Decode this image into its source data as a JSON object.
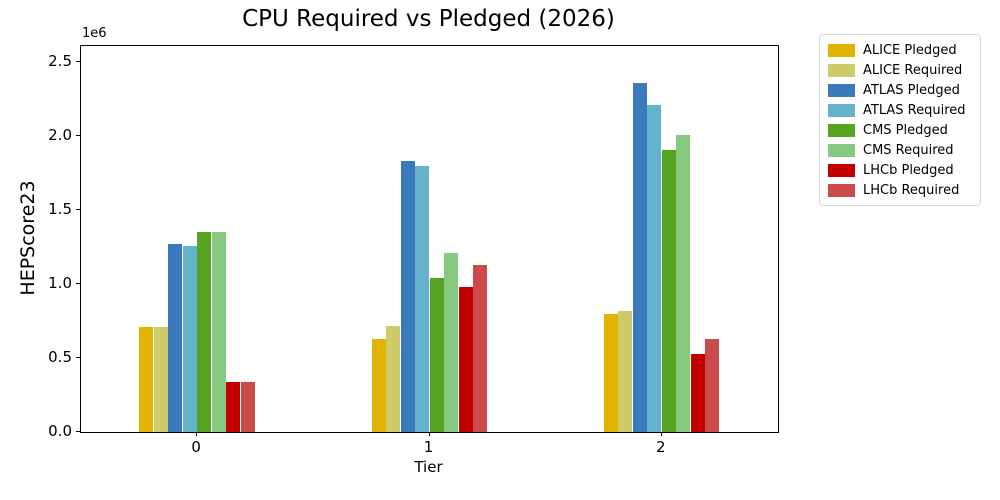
{
  "chart_data": {
    "type": "bar",
    "title": "CPU Required vs Pledged (2026)",
    "xlabel": "Tier",
    "ylabel": "HEPScore23",
    "y_offset_label": "1e6",
    "categories": [
      "0",
      "1",
      "2"
    ],
    "series": [
      {
        "name": "ALICE Pledged",
        "color": "#e0b400",
        "values": [
          710000,
          630000,
          800000
        ]
      },
      {
        "name": "ALICE Required",
        "color": "#cecc68",
        "values": [
          710000,
          720000,
          820000
        ]
      },
      {
        "name": "ATLAS Pledged",
        "color": "#3b79bd",
        "values": [
          1270000,
          1830000,
          2360000
        ]
      },
      {
        "name": "ATLAS Required",
        "color": "#64b2cc",
        "values": [
          1260000,
          1800000,
          2210000
        ]
      },
      {
        "name": "CMS Pledged",
        "color": "#55a321",
        "values": [
          1350000,
          1040000,
          1910000
        ]
      },
      {
        "name": "CMS Required",
        "color": "#88c982",
        "values": [
          1350000,
          1210000,
          2010000
        ]
      },
      {
        "name": "LHCb Pledged",
        "color": "#c20000",
        "values": [
          340000,
          980000,
          530000
        ]
      },
      {
        "name": "LHCb Required",
        "color": "#cb4a4a",
        "values": [
          340000,
          1130000,
          630000
        ]
      }
    ],
    "ylim": [
      0,
      2610000
    ],
    "yticks": [
      0,
      500000,
      1000000,
      1500000,
      2000000,
      2500000
    ],
    "ytick_labels": [
      "0.0",
      "0.5",
      "1.0",
      "1.5",
      "2.0",
      "2.5"
    ],
    "grid": false,
    "legend_position": "outside-upper-right"
  }
}
